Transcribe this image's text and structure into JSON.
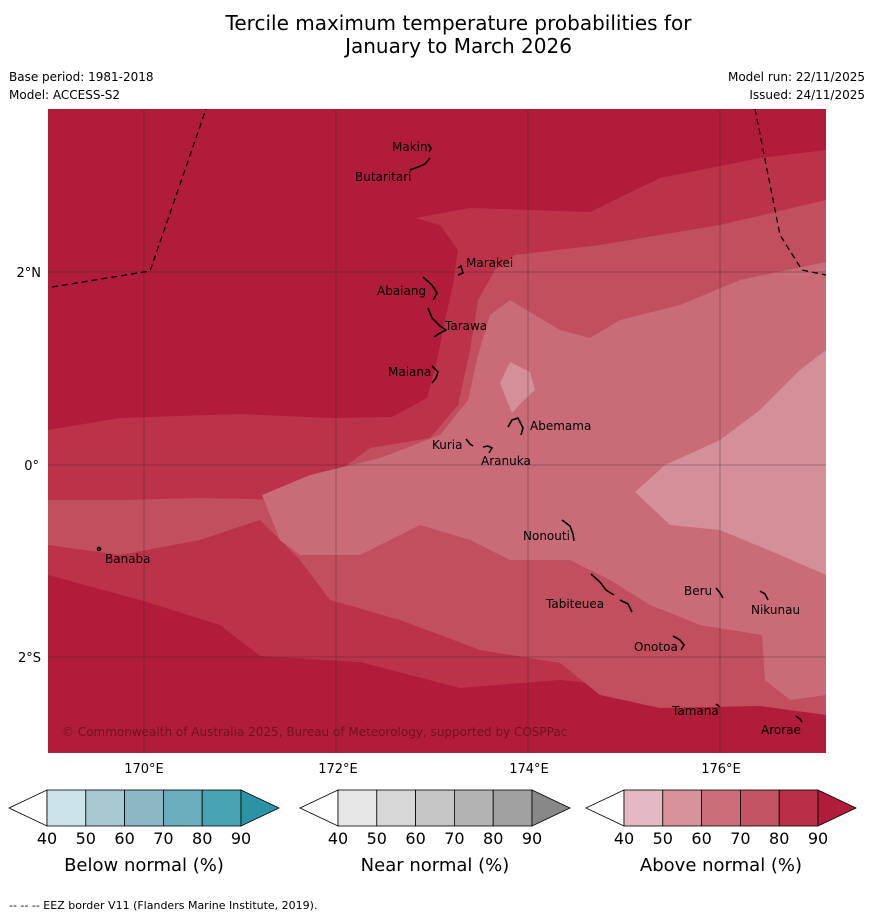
{
  "title": {
    "line1": "Tercile maximum temperature probabilities for",
    "line2": "January to March 2026"
  },
  "meta": {
    "base_period": "Base period: 1981-2018",
    "model": "Model: ACCESS-S2",
    "model_run": "Model run: 22/11/2025",
    "issued": "Issued: 24/11/2025"
  },
  "axes": {
    "lat_labels": [
      "2°N",
      "0°",
      "2°S"
    ],
    "lon_labels": [
      "170°E",
      "172°E",
      "174°E",
      "176°E"
    ]
  },
  "places": {
    "makin": "Makin",
    "butaritari": "Butaritari",
    "marakei": "Marakei",
    "abaiang": "Abaiang",
    "tarawa": "Tarawa",
    "maiana": "Maiana",
    "abemama": "Abemama",
    "kuria": "Kuria",
    "aranuka": "Aranuka",
    "nonouti": "Nonouti",
    "banaba": "Banaba",
    "beru": "Beru",
    "nikunau": "Nikunau",
    "tabiteuea": "Tabiteuea",
    "onotoa": "Onotoa",
    "tamana": "Tamana",
    "arorae": "Arorae"
  },
  "copyright": "© Commonwealth of Australia 2025, Bureau of Meteorology, supported by COSPPac",
  "colorbars": {
    "ticks": [
      "40",
      "50",
      "60",
      "70",
      "80",
      "90"
    ],
    "below": {
      "title": "Below normal (%)",
      "colors": [
        "#ffffff",
        "#cde3ea",
        "#a9c9d1",
        "#8ab8c5",
        "#6aaebd",
        "#48a3b3",
        "#2c93a5"
      ]
    },
    "near": {
      "title": "Near normal (%)",
      "colors": [
        "#ffffff",
        "#e6e6e6",
        "#d7d7d7",
        "#c6c6c6",
        "#b3b3b3",
        "#a0a0a0",
        "#888888"
      ]
    },
    "above": {
      "title": "Above normal (%)",
      "colors": [
        "#ffffff",
        "#e4b9c1",
        "#d8929c",
        "#cc6d7a",
        "#c25563",
        "#b92f47",
        "#b11c3a"
      ]
    }
  },
  "footer": "--  --  -- EEZ border V11 (Flanders Marine Institute, 2019)."
}
